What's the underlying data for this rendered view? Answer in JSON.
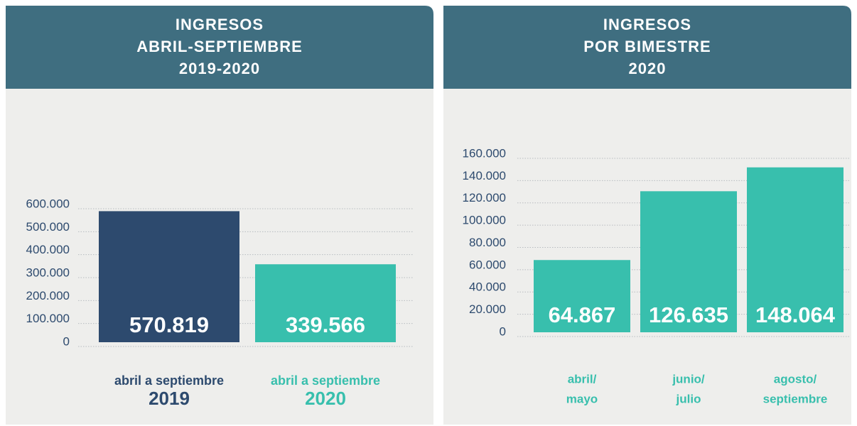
{
  "chart_data": [
    {
      "type": "bar",
      "title": [
        "INGRESOS",
        "ABRIL-SEPTIEMBRE",
        "2019-2020"
      ],
      "categories": [
        [
          "abril a septiembre",
          "2019"
        ],
        [
          "abril a septiembre",
          "2020"
        ]
      ],
      "values": [
        570819,
        339566
      ],
      "value_labels": [
        "570.819",
        "339.566"
      ],
      "colors": [
        "#2d4a6e",
        "#38bfad"
      ],
      "ylim": [
        0,
        600000
      ],
      "yticks": [
        {
          "value": 0,
          "label": "0"
        },
        {
          "value": 100000,
          "label": "100.000"
        },
        {
          "value": 200000,
          "label": "200.000"
        },
        {
          "value": 300000,
          "label": "300.000"
        },
        {
          "value": 400000,
          "label": "400.000"
        },
        {
          "value": 500000,
          "label": "500.000"
        },
        {
          "value": 600000,
          "label": "600.000"
        }
      ],
      "grid": true
    },
    {
      "type": "bar",
      "title": [
        "INGRESOS",
        "POR BIMESTRE",
        "2020"
      ],
      "categories": [
        [
          "abril/",
          "mayo"
        ],
        [
          "junio/",
          "julio"
        ],
        [
          "agosto/",
          "septiembre"
        ]
      ],
      "values": [
        64867,
        126635,
        148064
      ],
      "value_labels": [
        "64.867",
        "126.635",
        "148.064"
      ],
      "colors": [
        "#38bfad",
        "#38bfad",
        "#38bfad"
      ],
      "ylim": [
        0,
        160000
      ],
      "yticks": [
        {
          "value": 0,
          "label": "0"
        },
        {
          "value": 20000,
          "label": "20.000"
        },
        {
          "value": 40000,
          "label": "40.000"
        },
        {
          "value": 60000,
          "label": "60.000"
        },
        {
          "value": 80000,
          "label": "80.000"
        },
        {
          "value": 100000,
          "label": "100.000"
        },
        {
          "value": 120000,
          "label": "120.000"
        },
        {
          "value": 140000,
          "label": "140.000"
        },
        {
          "value": 160000,
          "label": "160.000"
        }
      ],
      "grid": true
    }
  ]
}
